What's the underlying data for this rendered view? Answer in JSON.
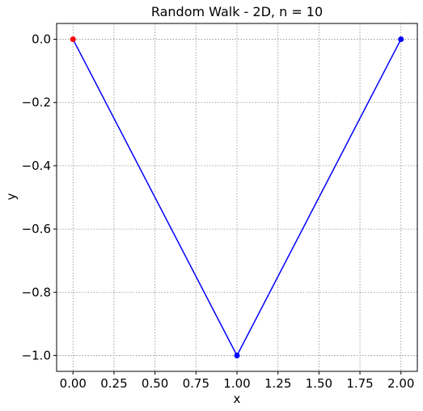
{
  "chart_data": {
    "type": "line",
    "title": "Random Walk - 2D, n = 10",
    "xlabel": "x",
    "ylabel": "y",
    "xlim": [
      -0.1,
      2.1
    ],
    "ylim": [
      -1.05,
      0.05
    ],
    "grid": true,
    "xticks": [
      0.0,
      0.25,
      0.5,
      0.75,
      1.0,
      1.25,
      1.5,
      1.75,
      2.0
    ],
    "xtick_labels": [
      "0.00",
      "0.25",
      "0.50",
      "0.75",
      "1.00",
      "1.25",
      "1.50",
      "1.75",
      "2.00"
    ],
    "yticks": [
      0.0,
      -0.2,
      -0.4,
      -0.6,
      -0.8,
      -1.0
    ],
    "ytick_labels": [
      "0.0",
      "−0.2",
      "−0.4",
      "−0.6",
      "−0.8",
      "−1.0"
    ],
    "series": [
      {
        "x": [
          0,
          1,
          2
        ],
        "y": [
          0,
          -1,
          0
        ],
        "color": "#0000ff"
      }
    ],
    "points": [
      {
        "x": 0,
        "y": 0,
        "color": "#ff0000"
      },
      {
        "x": 1,
        "y": -1,
        "color": "#0000ff"
      },
      {
        "x": 2,
        "y": 0,
        "color": "#0000ff"
      }
    ]
  }
}
